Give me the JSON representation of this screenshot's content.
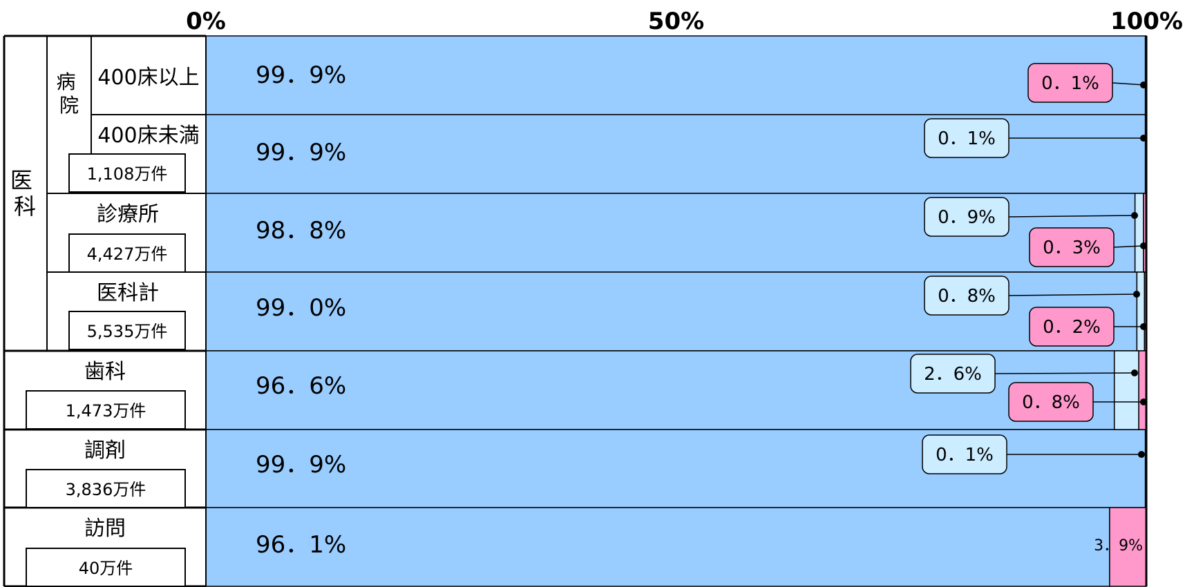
{
  "chart_data": {
    "type": "bar",
    "stacked": true,
    "orientation": "horizontal",
    "x_ticks": [
      "0%",
      "50%",
      "100%"
    ],
    "xlim": [
      0,
      100
    ],
    "groups": {
      "ika": "医\n科",
      "byoin": "病\n院"
    },
    "categories": [
      {
        "label": "400床以上",
        "count": ""
      },
      {
        "label": "400床未満",
        "count": "1,108万件"
      },
      {
        "label": "診療所",
        "count": "4,427万件"
      },
      {
        "label": "医科計",
        "count": "5,535万件"
      },
      {
        "label": "歯科",
        "count": "1,473万件"
      },
      {
        "label": "調剤",
        "count": "3,836万件"
      },
      {
        "label": "訪問",
        "count": "40万件"
      }
    ],
    "series": [
      {
        "values": [
          99.9,
          99.9,
          98.8,
          99.0,
          96.6,
          99.9,
          96.1
        ],
        "color": "#99CCFF"
      },
      {
        "values": [
          0.0,
          0.1,
          0.9,
          0.8,
          2.6,
          0.1,
          0.0
        ],
        "color": "#CCECFF"
      },
      {
        "values": [
          0.1,
          0.0,
          0.3,
          0.2,
          0.8,
          0.0,
          3.9
        ],
        "color": "#FF99CC"
      }
    ],
    "value_labels": [
      {
        "main": "99．9%",
        "callouts": [
          {
            "text": "0．1%",
            "series": 2
          }
        ]
      },
      {
        "main": "99．9%",
        "callouts": [
          {
            "text": "0．1%",
            "series": 1
          }
        ]
      },
      {
        "main": "98．8%",
        "callouts": [
          {
            "text": "0．9%",
            "series": 1
          },
          {
            "text": "0．3%",
            "series": 2
          }
        ]
      },
      {
        "main": "99．0%",
        "callouts": [
          {
            "text": "0．8%",
            "series": 1
          },
          {
            "text": "0．2%",
            "series": 2
          }
        ]
      },
      {
        "main": "96．6%",
        "callouts": [
          {
            "text": "2．6%",
            "series": 1
          },
          {
            "text": "0．8%",
            "series": 2
          }
        ]
      },
      {
        "main": "99．9%",
        "callouts": [
          {
            "text": "0．1%",
            "series": 1
          }
        ]
      },
      {
        "main": "96．1%",
        "inside_label": "3．9%",
        "callouts": []
      }
    ]
  }
}
